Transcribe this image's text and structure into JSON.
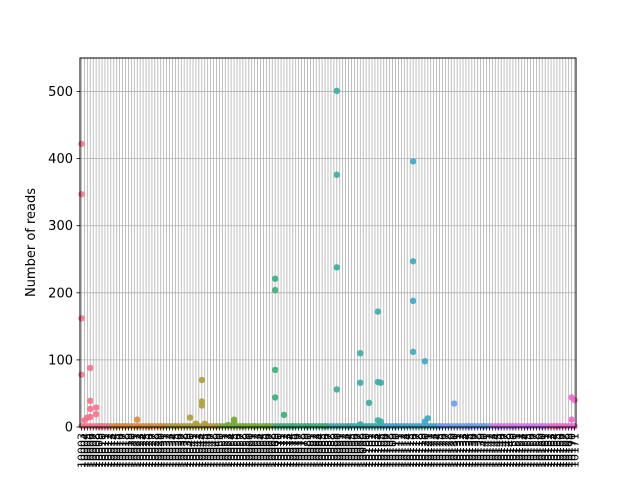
{
  "chart_data": {
    "type": "scatter",
    "title": "",
    "xlabel": "",
    "ylabel": "Number of reads",
    "ylim": [
      0,
      550
    ],
    "yticks": [
      0,
      100,
      200,
      300,
      400,
      500
    ],
    "grid": true,
    "categories": [
      "10003",
      "10004",
      "10005",
      "10006",
      "10007",
      "10008",
      "10009",
      "10010",
      "10011",
      "10012",
      "10013",
      "10014",
      "10015",
      "10016",
      "10017",
      "10018",
      "10019",
      "10020",
      "10021",
      "10022",
      "10023",
      "10024",
      "10025",
      "10026",
      "10027",
      "10028",
      "10029",
      "10030",
      "10031",
      "10032",
      "10033",
      "10034",
      "10035",
      "10036",
      "10037",
      "10038",
      "10039",
      "10040",
      "10041",
      "10042",
      "10043",
      "10044",
      "10045",
      "10046",
      "10047",
      "10048",
      "10049",
      "10050",
      "10051",
      "10052",
      "10053",
      "10054",
      "10055",
      "10056",
      "10057",
      "10058",
      "10059",
      "10060",
      "10061",
      "10062",
      "10063",
      "10064",
      "10065",
      "10066",
      "10067",
      "10068",
      "10069",
      "10070",
      "10071",
      "10072",
      "10073",
      "10074",
      "10075",
      "10076",
      "10077",
      "10078",
      "10079",
      "10080",
      "10081",
      "10082",
      "10083",
      "10084",
      "10085",
      "10086",
      "10087",
      "10088",
      "10089",
      "10090",
      "10091",
      "10092",
      "10093",
      "10094",
      "10095",
      "10096",
      "10097",
      "10098",
      "10099",
      "10100",
      "10101",
      "10102",
      "10103",
      "10104",
      "10105",
      "10106",
      "10107",
      "10108",
      "10109",
      "10110",
      "10111",
      "10112",
      "10113",
      "10114",
      "10115",
      "10116",
      "10117",
      "10118",
      "10119",
      "10120",
      "10121",
      "10122",
      "10123",
      "10124",
      "10125",
      "10126",
      "10127",
      "10128",
      "10129",
      "10130",
      "10131",
      "10132",
      "10133",
      "10134",
      "10135",
      "10136",
      "10137",
      "10138",
      "10139",
      "10140",
      "10141",
      "10142",
      "10143",
      "10144",
      "10145",
      "10146",
      "10147",
      "10148",
      "10149",
      "10150",
      "10151",
      "10152",
      "10153",
      "10154",
      "10155",
      "10156",
      "10157",
      "10158",
      "10159",
      "10160",
      "10161",
      "10162",
      "10163",
      "10164",
      "10165",
      "10166",
      "10167",
      "10168",
      "10169",
      "10170",
      "10171"
    ],
    "points": [
      {
        "x": "10003",
        "y": 422
      },
      {
        "x": "10003",
        "y": 347
      },
      {
        "x": "10003",
        "y": 162
      },
      {
        "x": "10003",
        "y": 78
      },
      {
        "x": "10004",
        "y": 10
      },
      {
        "x": "10005",
        "y": 14
      },
      {
        "x": "10006",
        "y": 88
      },
      {
        "x": "10006",
        "y": 39
      },
      {
        "x": "10006",
        "y": 27
      },
      {
        "x": "10006",
        "y": 15
      },
      {
        "x": "10008",
        "y": 29
      },
      {
        "x": "10008",
        "y": 19
      },
      {
        "x": "10009",
        "y": 1
      },
      {
        "x": "10010",
        "y": 1
      },
      {
        "x": "10012",
        "y": 1
      },
      {
        "x": "10015",
        "y": 1
      },
      {
        "x": "10018",
        "y": 1
      },
      {
        "x": "10022",
        "y": 11
      },
      {
        "x": "10022",
        "y": 1
      },
      {
        "x": "10026",
        "y": 1
      },
      {
        "x": "10030",
        "y": 1
      },
      {
        "x": "10035",
        "y": 1
      },
      {
        "x": "10040",
        "y": 14
      },
      {
        "x": "10042",
        "y": 5
      },
      {
        "x": "10044",
        "y": 38
      },
      {
        "x": "10044",
        "y": 70
      },
      {
        "x": "10044",
        "y": 32
      },
      {
        "x": "10045",
        "y": 5
      },
      {
        "x": "10049",
        "y": 1
      },
      {
        "x": "10053",
        "y": 3
      },
      {
        "x": "10055",
        "y": 8
      },
      {
        "x": "10055",
        "y": 11
      },
      {
        "x": "10058",
        "y": 1
      },
      {
        "x": "10062",
        "y": 1
      },
      {
        "x": "10066",
        "y": 1
      },
      {
        "x": "10069",
        "y": 85
      },
      {
        "x": "10069",
        "y": 44
      },
      {
        "x": "10069",
        "y": 221
      },
      {
        "x": "10069",
        "y": 204
      },
      {
        "x": "10072",
        "y": 18
      },
      {
        "x": "10075",
        "y": 1
      },
      {
        "x": "10080",
        "y": 1
      },
      {
        "x": "10086",
        "y": 1
      },
      {
        "x": "10090",
        "y": 56
      },
      {
        "x": "10090",
        "y": 238
      },
      {
        "x": "10090",
        "y": 376
      },
      {
        "x": "10090",
        "y": 501
      },
      {
        "x": "10094",
        "y": 1
      },
      {
        "x": "10098",
        "y": 110
      },
      {
        "x": "10098",
        "y": 66
      },
      {
        "x": "10098",
        "y": 4
      },
      {
        "x": "10101",
        "y": 36
      },
      {
        "x": "10104",
        "y": 172
      },
      {
        "x": "10104",
        "y": 67
      },
      {
        "x": "10104",
        "y": 10
      },
      {
        "x": "10105",
        "y": 66
      },
      {
        "x": "10105",
        "y": 8
      },
      {
        "x": "10110",
        "y": 1
      },
      {
        "x": "10116",
        "y": 396
      },
      {
        "x": "10116",
        "y": 247
      },
      {
        "x": "10116",
        "y": 188
      },
      {
        "x": "10116",
        "y": 112
      },
      {
        "x": "10120",
        "y": 98
      },
      {
        "x": "10120",
        "y": 8
      },
      {
        "x": "10121",
        "y": 13
      },
      {
        "x": "10125",
        "y": 1
      },
      {
        "x": "10130",
        "y": 35
      },
      {
        "x": "10135",
        "y": 1
      },
      {
        "x": "10140",
        "y": 1
      },
      {
        "x": "10145",
        "y": 1
      },
      {
        "x": "10150",
        "y": 1
      },
      {
        "x": "10155",
        "y": 1
      },
      {
        "x": "10160",
        "y": 1
      },
      {
        "x": "10165",
        "y": 1
      },
      {
        "x": "10170",
        "y": 11
      },
      {
        "x": "10170",
        "y": 44
      },
      {
        "x": "10171",
        "y": 40
      },
      {
        "x": "10171",
        "y": 1
      }
    ],
    "colors": [
      "#f77189",
      "#dc8932",
      "#ae9d31",
      "#77ab31",
      "#33b07a",
      "#36ada4",
      "#38a9c5",
      "#6e9bf4",
      "#cc7af4",
      "#f565cc"
    ]
  }
}
